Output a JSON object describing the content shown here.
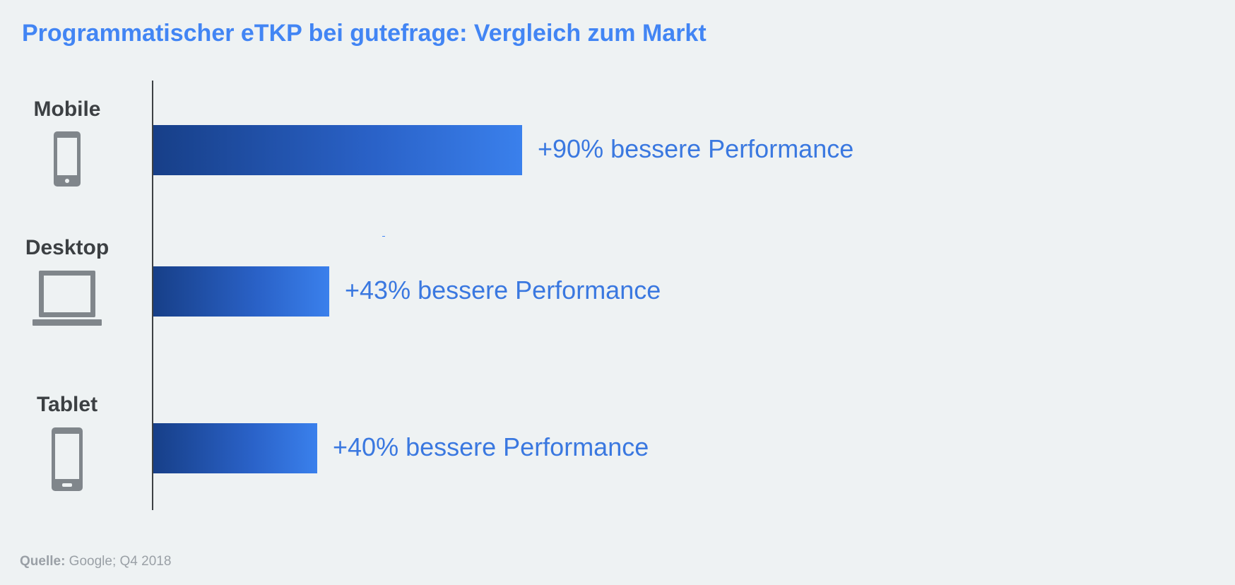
{
  "title": "Programmatischer eTKP bei gutefrage: Vergleich zum Markt",
  "colors": {
    "title": "#4285f4",
    "bar_start": "#173f88",
    "bar_end": "#3a80ec",
    "bar_label": "#3a78e0",
    "category_label": "#3c4043",
    "icon": "#80868b",
    "background": "#eef2f3"
  },
  "chart_data": {
    "type": "bar",
    "orientation": "horizontal",
    "categories": [
      "Mobile",
      "Desktop",
      "Tablet"
    ],
    "values": [
      90,
      43,
      40
    ],
    "unit": "%",
    "data_labels": [
      "+90% bessere Performance",
      "+43% bessere Performance",
      "+40% bessere Performance"
    ],
    "category_icons": [
      "smartphone-icon",
      "laptop-icon",
      "tablet-icon"
    ],
    "title": "Programmatischer eTKP bei gutefrage: Vergleich zum Markt",
    "xlabel": "",
    "ylabel": "",
    "legend": "none",
    "grid": false
  },
  "source": {
    "label": "Quelle:",
    "text": " Google; Q4 2018"
  }
}
